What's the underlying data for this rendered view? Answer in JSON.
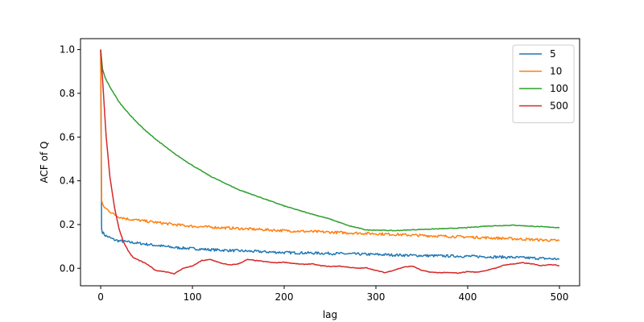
{
  "chart_data": {
    "type": "line",
    "title": "",
    "xlabel": "lag",
    "ylabel": "ACF of Q",
    "xlim": [
      -22,
      522
    ],
    "ylim": [
      -0.08,
      1.05
    ],
    "xticks": [
      0,
      100,
      200,
      300,
      400,
      500
    ],
    "yticks": [
      0.0,
      0.2,
      0.4,
      0.6,
      0.8,
      1.0
    ],
    "ytick_labels": [
      "0.0",
      "0.2",
      "0.4",
      "0.6",
      "0.8",
      "1.0"
    ],
    "grid": false,
    "legend_position": "top-right",
    "series": [
      {
        "name": "5",
        "color": "#1f77b4",
        "x": [
          0,
          1,
          2,
          5,
          10,
          15,
          20,
          30,
          40,
          50,
          60,
          80,
          100,
          120,
          150,
          180,
          200,
          250,
          300,
          350,
          400,
          450,
          500
        ],
        "y": [
          1.0,
          0.18,
          0.165,
          0.15,
          0.14,
          0.13,
          0.125,
          0.12,
          0.115,
          0.11,
          0.105,
          0.095,
          0.09,
          0.085,
          0.08,
          0.075,
          0.072,
          0.068,
          0.063,
          0.058,
          0.055,
          0.05,
          0.042
        ]
      },
      {
        "name": "10",
        "color": "#ff7f0e",
        "x": [
          0,
          1,
          2,
          5,
          10,
          15,
          20,
          30,
          40,
          50,
          60,
          80,
          100,
          150,
          200,
          250,
          300,
          350,
          400,
          450,
          500
        ],
        "y": [
          1.0,
          0.31,
          0.29,
          0.275,
          0.26,
          0.245,
          0.235,
          0.225,
          0.22,
          0.215,
          0.21,
          0.2,
          0.192,
          0.182,
          0.172,
          0.165,
          0.158,
          0.15,
          0.143,
          0.135,
          0.126
        ]
      },
      {
        "name": "100",
        "color": "#2ca02c",
        "x": [
          0,
          2,
          5,
          10,
          20,
          30,
          40,
          50,
          60,
          80,
          100,
          120,
          150,
          180,
          200,
          220,
          250,
          270,
          290,
          300,
          320,
          350,
          380,
          400,
          420,
          450,
          480,
          500
        ],
        "y": [
          1.0,
          0.91,
          0.87,
          0.83,
          0.76,
          0.71,
          0.665,
          0.625,
          0.59,
          0.525,
          0.47,
          0.42,
          0.36,
          0.315,
          0.285,
          0.26,
          0.225,
          0.195,
          0.175,
          0.175,
          0.172,
          0.178,
          0.182,
          0.186,
          0.193,
          0.197,
          0.19,
          0.186
        ]
      },
      {
        "name": "500",
        "color": "#d62728",
        "x": [
          0,
          3,
          6,
          10,
          15,
          20,
          25,
          30,
          35,
          40,
          50,
          60,
          70,
          80,
          90,
          100,
          110,
          120,
          130,
          140,
          150,
          160,
          170,
          180,
          190,
          200,
          210,
          220,
          230,
          240,
          250,
          260,
          270,
          280,
          290,
          300,
          310,
          320,
          330,
          340,
          350,
          360,
          370,
          380,
          390,
          400,
          410,
          420,
          430,
          440,
          450,
          460,
          470,
          480,
          490,
          500
        ],
        "y": [
          1.0,
          0.8,
          0.6,
          0.42,
          0.28,
          0.18,
          0.12,
          0.08,
          0.05,
          0.04,
          0.02,
          -0.01,
          -0.015,
          -0.025,
          0.0,
          0.01,
          0.035,
          0.04,
          0.025,
          0.015,
          0.02,
          0.04,
          0.035,
          0.03,
          0.025,
          0.028,
          0.022,
          0.018,
          0.02,
          0.012,
          0.008,
          0.01,
          0.005,
          0.0,
          0.002,
          -0.01,
          -0.02,
          -0.008,
          0.005,
          0.01,
          -0.01,
          -0.018,
          -0.02,
          -0.02,
          -0.022,
          -0.015,
          -0.018,
          -0.01,
          0.0,
          0.015,
          0.02,
          0.025,
          0.02,
          0.012,
          0.018,
          0.012
        ]
      }
    ]
  }
}
